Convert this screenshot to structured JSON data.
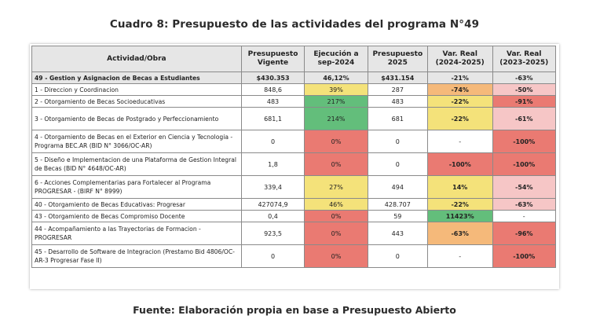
{
  "title": "Cuadro 8: Presupuesto de las actividades del programa N°49",
  "source": "Fuente: Elaboración propia en base a Presupuesto Abierto",
  "headers": {
    "actividad": "Actividad/Obra",
    "presupuesto_vigente": "Presupuesto Vigente",
    "ejecucion": "Ejecución a sep-2024",
    "presupuesto_2025": "Presupuesto 2025",
    "var_2024_2025": "Var. Real (2024-2025)",
    "var_2023_2025": "Var. Real (2023-2025)"
  },
  "rows": [
    {
      "actividad": "49 - Gestion y Asignacion de Becas a Estudiantes",
      "vigente": "$430.353",
      "ejecucion": "46,12%",
      "p2025": "$431.154",
      "var1": "-21%",
      "var2": "-63%"
    },
    {
      "actividad": "1 - Direccion y Coordinacion",
      "vigente": "848,6",
      "ejecucion": "39%",
      "p2025": "287",
      "var1": "-74%",
      "var2": "-50%"
    },
    {
      "actividad": "2 - Otorgamiento de Becas Socioeducativas",
      "vigente": "483",
      "ejecucion": "217%",
      "p2025": "483",
      "var1": "-22%",
      "var2": "-91%"
    },
    {
      "actividad": "3 - Otorgamiento de Becas de Postgrado y Perfeccionamiento",
      "vigente": "681,1",
      "ejecucion": "214%",
      "p2025": "681",
      "var1": "-22%",
      "var2": "-61%"
    },
    {
      "actividad": "4 - Otorgamiento de Becas en el Exterior en Ciencia y Tecnologia - Programa BEC.AR (BID N° 3066/OC-AR)",
      "vigente": "0",
      "ejecucion": "0%",
      "p2025": "0",
      "var1": "-",
      "var2": "-100%"
    },
    {
      "actividad": "5 - Diseño e Implementacion de una Plataforma de Gestion Integral de Becas (BID N° 4648/OC-AR)",
      "vigente": "1,8",
      "ejecucion": "0%",
      "p2025": "0",
      "var1": "-100%",
      "var2": "-100%"
    },
    {
      "actividad": "6 - Acciones Complementarias para Fortalecer al Programa PROGRESAR - (BIRF N° 8999)",
      "vigente": "339,4",
      "ejecucion": "27%",
      "p2025": "494",
      "var1": "14%",
      "var2": "-54%"
    },
    {
      "actividad": "40 - Otorgamiento de Becas Educativas: Progresar",
      "vigente": "427074,9",
      "ejecucion": "46%",
      "p2025": "428.707",
      "var1": "-22%",
      "var2": "-63%"
    },
    {
      "actividad": "43 - Otorgamiento de Becas Compromiso Docente",
      "vigente": "0,4",
      "ejecucion": "0%",
      "p2025": "59",
      "var1": "11423%",
      "var2": "-"
    },
    {
      "actividad": "44 - Acompañamiento a las Trayectorias de Formacion - PROGRESAR",
      "vigente": "923,5",
      "ejecucion": "0%",
      "p2025": "443",
      "var1": "-63%",
      "var2": "-96%"
    },
    {
      "actividad": "45 - Desarrollo de Software de Integracion (Prestamo Bid 4806/OC-AR-3 Progresar Fase II)",
      "vigente": "0",
      "ejecucion": "0%",
      "p2025": "0",
      "var1": "-",
      "var2": "-100%"
    }
  ],
  "cell_colors": {
    "yellow": "#f4e27a",
    "green": "#63be7b",
    "orange": "#f5b97a",
    "red": "#ea7a72",
    "pink": "#f6c6c6",
    "header_gray": "#e6e6e6"
  }
}
